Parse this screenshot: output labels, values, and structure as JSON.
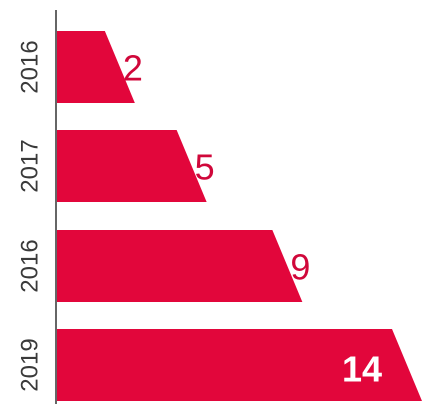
{
  "chart_data": {
    "type": "bar",
    "orientation": "horizontal",
    "categories": [
      "2016",
      "2017",
      "2016",
      "2019"
    ],
    "values": [
      2,
      5,
      9,
      14
    ],
    "xlim": [
      0,
      14
    ],
    "grid": false,
    "legend": "none",
    "bar_color": "#e2063b",
    "label_color_outside": "#d0073a",
    "label_color_inside": "#ffffff"
  }
}
